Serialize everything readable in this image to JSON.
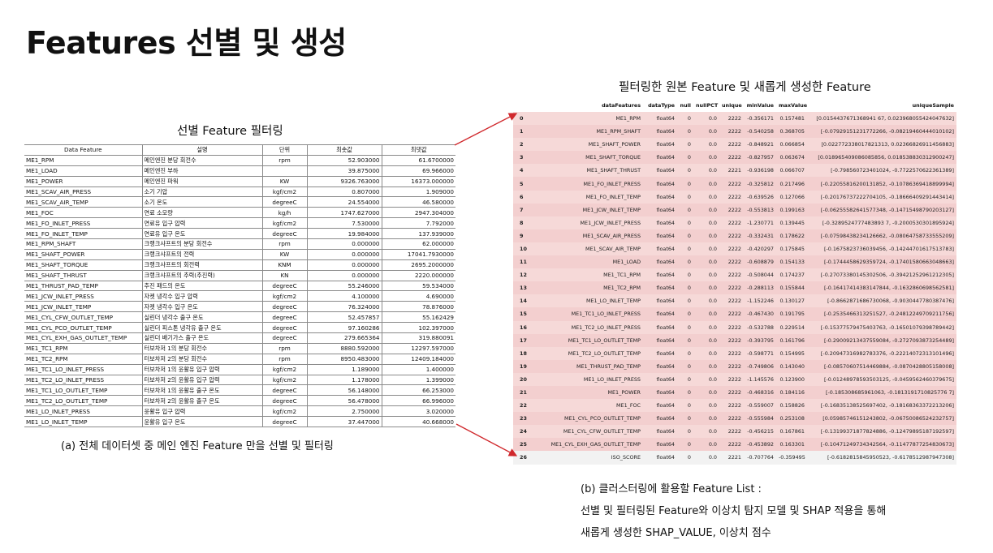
{
  "title": "Features 선별 및 생성",
  "left": {
    "heading": "선별 Feature 필터링",
    "columns": [
      "Data Feature",
      "설명",
      "단위",
      "최솟값",
      "최댓값"
    ],
    "rows": [
      [
        "ME1_RPM",
        "메인엔진 분당 회전수",
        "rpm",
        "52.903000",
        "61.6700000"
      ],
      [
        "ME1_LOAD",
        "메인엔진 부하",
        "",
        "39.875000",
        "69.966000"
      ],
      [
        "ME1_POWER",
        "메인엔진 파워",
        "KW",
        "9326.763000",
        "16373.000000"
      ],
      [
        "ME1_SCAV_AIR_PRESS",
        "소기 기압",
        "kgf/cm2",
        "0.807000",
        "1.909000"
      ],
      [
        "ME1_SCAV_AIR_TEMP",
        "소기 온도",
        "degreeC",
        "24.554000",
        "46.580000"
      ],
      [
        "ME1_FOC",
        "연료 소모량",
        "kg/h",
        "1747.627000",
        "2947.304000"
      ],
      [
        "ME1_FO_INLET_PRESS",
        "연료유 입구 압력",
        "kgf/cm2",
        "7.530000",
        "7.792000"
      ],
      [
        "ME1_FO_INLET_TEMP",
        "연료유 입구 온도",
        "degreeC",
        "19.984000",
        "137.939000"
      ],
      [
        "ME1_RPM_SHAFT",
        "크랭크샤프트의 분당 회전수",
        "rpm",
        "0.000000",
        "62.000000"
      ],
      [
        "ME1_SHAFT_POWER",
        "크랭크샤프트의 전력",
        "KW",
        "0.000000",
        "17041.7930000"
      ],
      [
        "ME1_SHAFT_TORQUE",
        "크랭크샤프트의 회전력",
        "KNM",
        "0.000000",
        "2695.2000000"
      ],
      [
        "ME1_SHAFT_THRUST",
        "크랭크샤프트의 추력(추진력)",
        "KN",
        "0.000000",
        "2220.000000"
      ],
      [
        "ME1_THRUST_PAD_TEMP",
        "추진 패드의 온도",
        "degreeC",
        "55.246000",
        "59.534000"
      ],
      [
        "ME1_JCW_INLET_PRESS",
        "자켓 냉각수 입구 압력",
        "kgf/cm2",
        "4.100000",
        "4.690000"
      ],
      [
        "ME1_JCW_INLET_TEMP",
        "자켓 냉각수 입구 온도",
        "degreeC",
        "76.324000",
        "78.876000"
      ],
      [
        "ME1_CYL_CFW_OUTLET_TEMP",
        "실린더 냉각수 출구 온도",
        "degreeC",
        "52.457857",
        "55.162429"
      ],
      [
        "ME1_CYL_PCO_OUTLET_TEMP",
        "실린더 피스톤 냉각유 출구 온도",
        "degreeC",
        "97.160286",
        "102.397000"
      ],
      [
        "ME1_CYL_EXH_GAS_OUTLET_TEMP",
        "실린더 배기가스 출구 온도",
        "degreeC",
        "279.665364",
        "319.880091"
      ],
      [
        "ME1_TC1_RPM",
        "터보차저 1의 분당 회전수",
        "rpm",
        "8880.592000",
        "12297.597000"
      ],
      [
        "ME1_TC2_RPM",
        "터보차저 2의 분당 회전수",
        "rpm",
        "8950.483000",
        "12409.184000"
      ],
      [
        "ME1_TC1_LO_INLET_PRESS",
        "터보차저 1의 윤활유 입구 압력",
        "kgf/cm2",
        "1.189000",
        "1.400000"
      ],
      [
        "ME1_TC2_LO_INLET_PRESS",
        "터보차저 2의 윤활유 입구 압력",
        "kgf/cm2",
        "1.178000",
        "1.399000"
      ],
      [
        "ME1_TC1_LO_OUTLET_TEMP",
        "터보차저 1의 윤활유 출구 온도",
        "degreeC",
        "56.148000",
        "66.253000"
      ],
      [
        "ME1_TC2_LO_OUTLET_TEMP",
        "터보차저 2의 윤활유 출구 온도",
        "degreeC",
        "56.478000",
        "66.996000"
      ],
      [
        "ME1_LO_INLET_PRESS",
        "윤활유 입구 압력",
        "kgf/cm2",
        "2.750000",
        "3.020000"
      ],
      [
        "ME1_LO_INLET_TEMP",
        "윤활유 입구 온도",
        "degreeC",
        "37.447000",
        "40.668000"
      ]
    ],
    "caption": "(a) 전체 데이터셋 중 메인 엔진 Feature 만을 선별 및 필터링"
  },
  "right": {
    "heading": "필터링한 원본 Feature 및 새롭게 생성한 Feature",
    "columns": [
      "",
      "dataFeatures",
      "dataType",
      "null",
      "nullPCT",
      "unique",
      "minValue",
      "maxValue",
      "uniqueSample"
    ],
    "rows": [
      [
        "0",
        "ME1_RPM",
        "float64",
        "0",
        "0.0",
        "2222",
        "-0.356171",
        "0.157481",
        "[0.0154437671368941 67, 0.023968055424047632]"
      ],
      [
        "1",
        "ME1_RPM_SHAFT",
        "float64",
        "0",
        "0.0",
        "2222",
        "-0.540258",
        "0.368705",
        "[-0.07929151231772266, -0.08219460444010102]"
      ],
      [
        "2",
        "ME1_SHAFT_POWER",
        "float64",
        "0",
        "0.0",
        "2222",
        "-0.848921",
        "0.066854",
        "[0.022772338017821313, 0.02366826911456883]"
      ],
      [
        "3",
        "ME1_SHAFT_TORQUE",
        "float64",
        "0",
        "0.0",
        "2222",
        "-0.827957",
        "0.063674",
        "[0.018965409086085856, 0.018538830312900247]"
      ],
      [
        "4",
        "ME1_SHAFT_THRUST",
        "float64",
        "0",
        "0.0",
        "2221",
        "-0.936198",
        "0.066707",
        "[-0.798560723401024, -0.7722570622361389]"
      ],
      [
        "5",
        "ME1_FO_INLET_PRESS",
        "float64",
        "0",
        "0.0",
        "2222",
        "-0.325812",
        "0.217496",
        "[-0.22055816200131852, -0.10786369418899994]"
      ],
      [
        "6",
        "ME1_FO_INLET_TEMP",
        "float64",
        "0",
        "0.0",
        "2222",
        "-0.639526",
        "0.127066",
        "[-0.20176737222704105, -0.18666409291443414]"
      ],
      [
        "7",
        "ME1_JCW_INLET_TEMP",
        "float64",
        "0",
        "0.0",
        "2222",
        "-0.553813",
        "0.199163",
        "[-0.06255582641577348, -0.14715498790203127]"
      ],
      [
        "8",
        "ME1_JCW_INLET_PRESS",
        "float64",
        "0",
        "0.0",
        "2222",
        "-1.230771",
        "0.139445",
        "[-0.3289524777483893 7, -0.2000530301895924]"
      ],
      [
        "9",
        "ME1_SCAV_AIR_PRESS",
        "float64",
        "0",
        "0.0",
        "2222",
        "-0.332431",
        "0.178622",
        "[-0.07598438234126662, -0.08064758733555209]"
      ],
      [
        "10",
        "ME1_SCAV_AIR_TEMP",
        "float64",
        "0",
        "0.0",
        "2222",
        "-0.420297",
        "0.175845",
        "[-0.1675823736039456, -0.14244701617513783]"
      ],
      [
        "11",
        "ME1_LOAD",
        "float64",
        "0",
        "0.0",
        "2222",
        "-0.608879",
        "0.154133",
        "[-0.1744458629359724, -0.17401580663048663]"
      ],
      [
        "12",
        "ME1_TC1_RPM",
        "float64",
        "0",
        "0.0",
        "2222",
        "-0.508044",
        "0.174237",
        "[-0.27073380145302506, -0.39421252961212305]"
      ],
      [
        "13",
        "ME1_TC2_RPM",
        "float64",
        "0",
        "0.0",
        "2222",
        "-0.288113",
        "0.155844",
        "[-0.16417414383147844, -0.1632860698562581]"
      ],
      [
        "14",
        "ME1_LO_INLET_TEMP",
        "float64",
        "0",
        "0.0",
        "2222",
        "-1.152246",
        "0.130127",
        "[-0.8662871686730068, -0.9030447780387476]"
      ],
      [
        "15",
        "ME1_TC1_LO_INLET_PRESS",
        "float64",
        "0",
        "0.0",
        "2222",
        "-0.467430",
        "0.191795",
        "[-0.2535466313251527, -0.24812249709211756]"
      ],
      [
        "16",
        "ME1_TC2_LO_INLET_PRESS",
        "float64",
        "0",
        "0.0",
        "2222",
        "-0.532788",
        "0.229514",
        "[-0.15377579475403763, -0.16501079398789442]"
      ],
      [
        "17",
        "ME1_TC1_LO_OUTLET_TEMP",
        "float64",
        "0",
        "0.0",
        "2222",
        "-0.393795",
        "0.161796",
        "[-0.29009213437559084, -0.2727093873254489]"
      ],
      [
        "18",
        "ME1_TC2_LO_OUTLET_TEMP",
        "float64",
        "0",
        "0.0",
        "2222",
        "-0.598771",
        "0.154995",
        "[-0.20947316982783376, -0.22214072313101496]"
      ],
      [
        "19",
        "ME1_THRUST_PAD_TEMP",
        "float64",
        "0",
        "0.0",
        "2222",
        "-0.749806",
        "0.143040",
        "[-0.08570607514469884, -0.0870428805158008]"
      ],
      [
        "20",
        "ME1_LO_INLET_PRESS",
        "float64",
        "0",
        "0.0",
        "2222",
        "-1.145576",
        "0.123900",
        "[-0.01248978593503125, -0.0459562460379675]"
      ],
      [
        "21",
        "ME1_POWER",
        "float64",
        "0",
        "0.0",
        "2222",
        "-0.468316",
        "0.184116",
        "[-0.185308685961063, -0.1813191710825776 7]"
      ],
      [
        "22",
        "ME1_FOC",
        "float64",
        "0",
        "0.0",
        "2222",
        "-0.559007",
        "0.158826",
        "[-0.16835138525697402, -0.18168363372213206]"
      ],
      [
        "23",
        "ME1_CYL_PCO_OUTLET_TEMP",
        "float64",
        "0",
        "0.0",
        "2222",
        "-0.555984",
        "0.253108",
        "[0.05985746151243802, -0.06750086524232757]"
      ],
      [
        "24",
        "ME1_CYL_CFW_OUTLET_TEMP",
        "float64",
        "0",
        "0.0",
        "2222",
        "-0.456215",
        "0.167861",
        "[-0.13199371877824886, -0.12479895187192597]"
      ],
      [
        "25",
        "ME1_CYL_EXH_GAS_OUTLET_TEMP",
        "float64",
        "0",
        "0.0",
        "2222",
        "-0.453892",
        "0.163301",
        "[-0.10471249734342564, -0.11477877254830673]"
      ],
      [
        "26",
        "ISO_SCORE",
        "float64",
        "0",
        "0.0",
        "2221",
        "-0.707764",
        "-0.359495",
        "[-0.6182815845950523, -0.6178512987947308]"
      ]
    ],
    "caption_lines": [
      "(b) 클러스터링에 활용할 Feature List :",
      "선별 및 필터링된 Feature와 이상치 탐지 모델 및 SHAP 적용을 통해",
      "새롭게 생성한 SHAP_VALUE,  이상치 점수"
    ]
  },
  "colors": {
    "highlight": "#f6d9d8",
    "arrow": "#d0282c"
  }
}
